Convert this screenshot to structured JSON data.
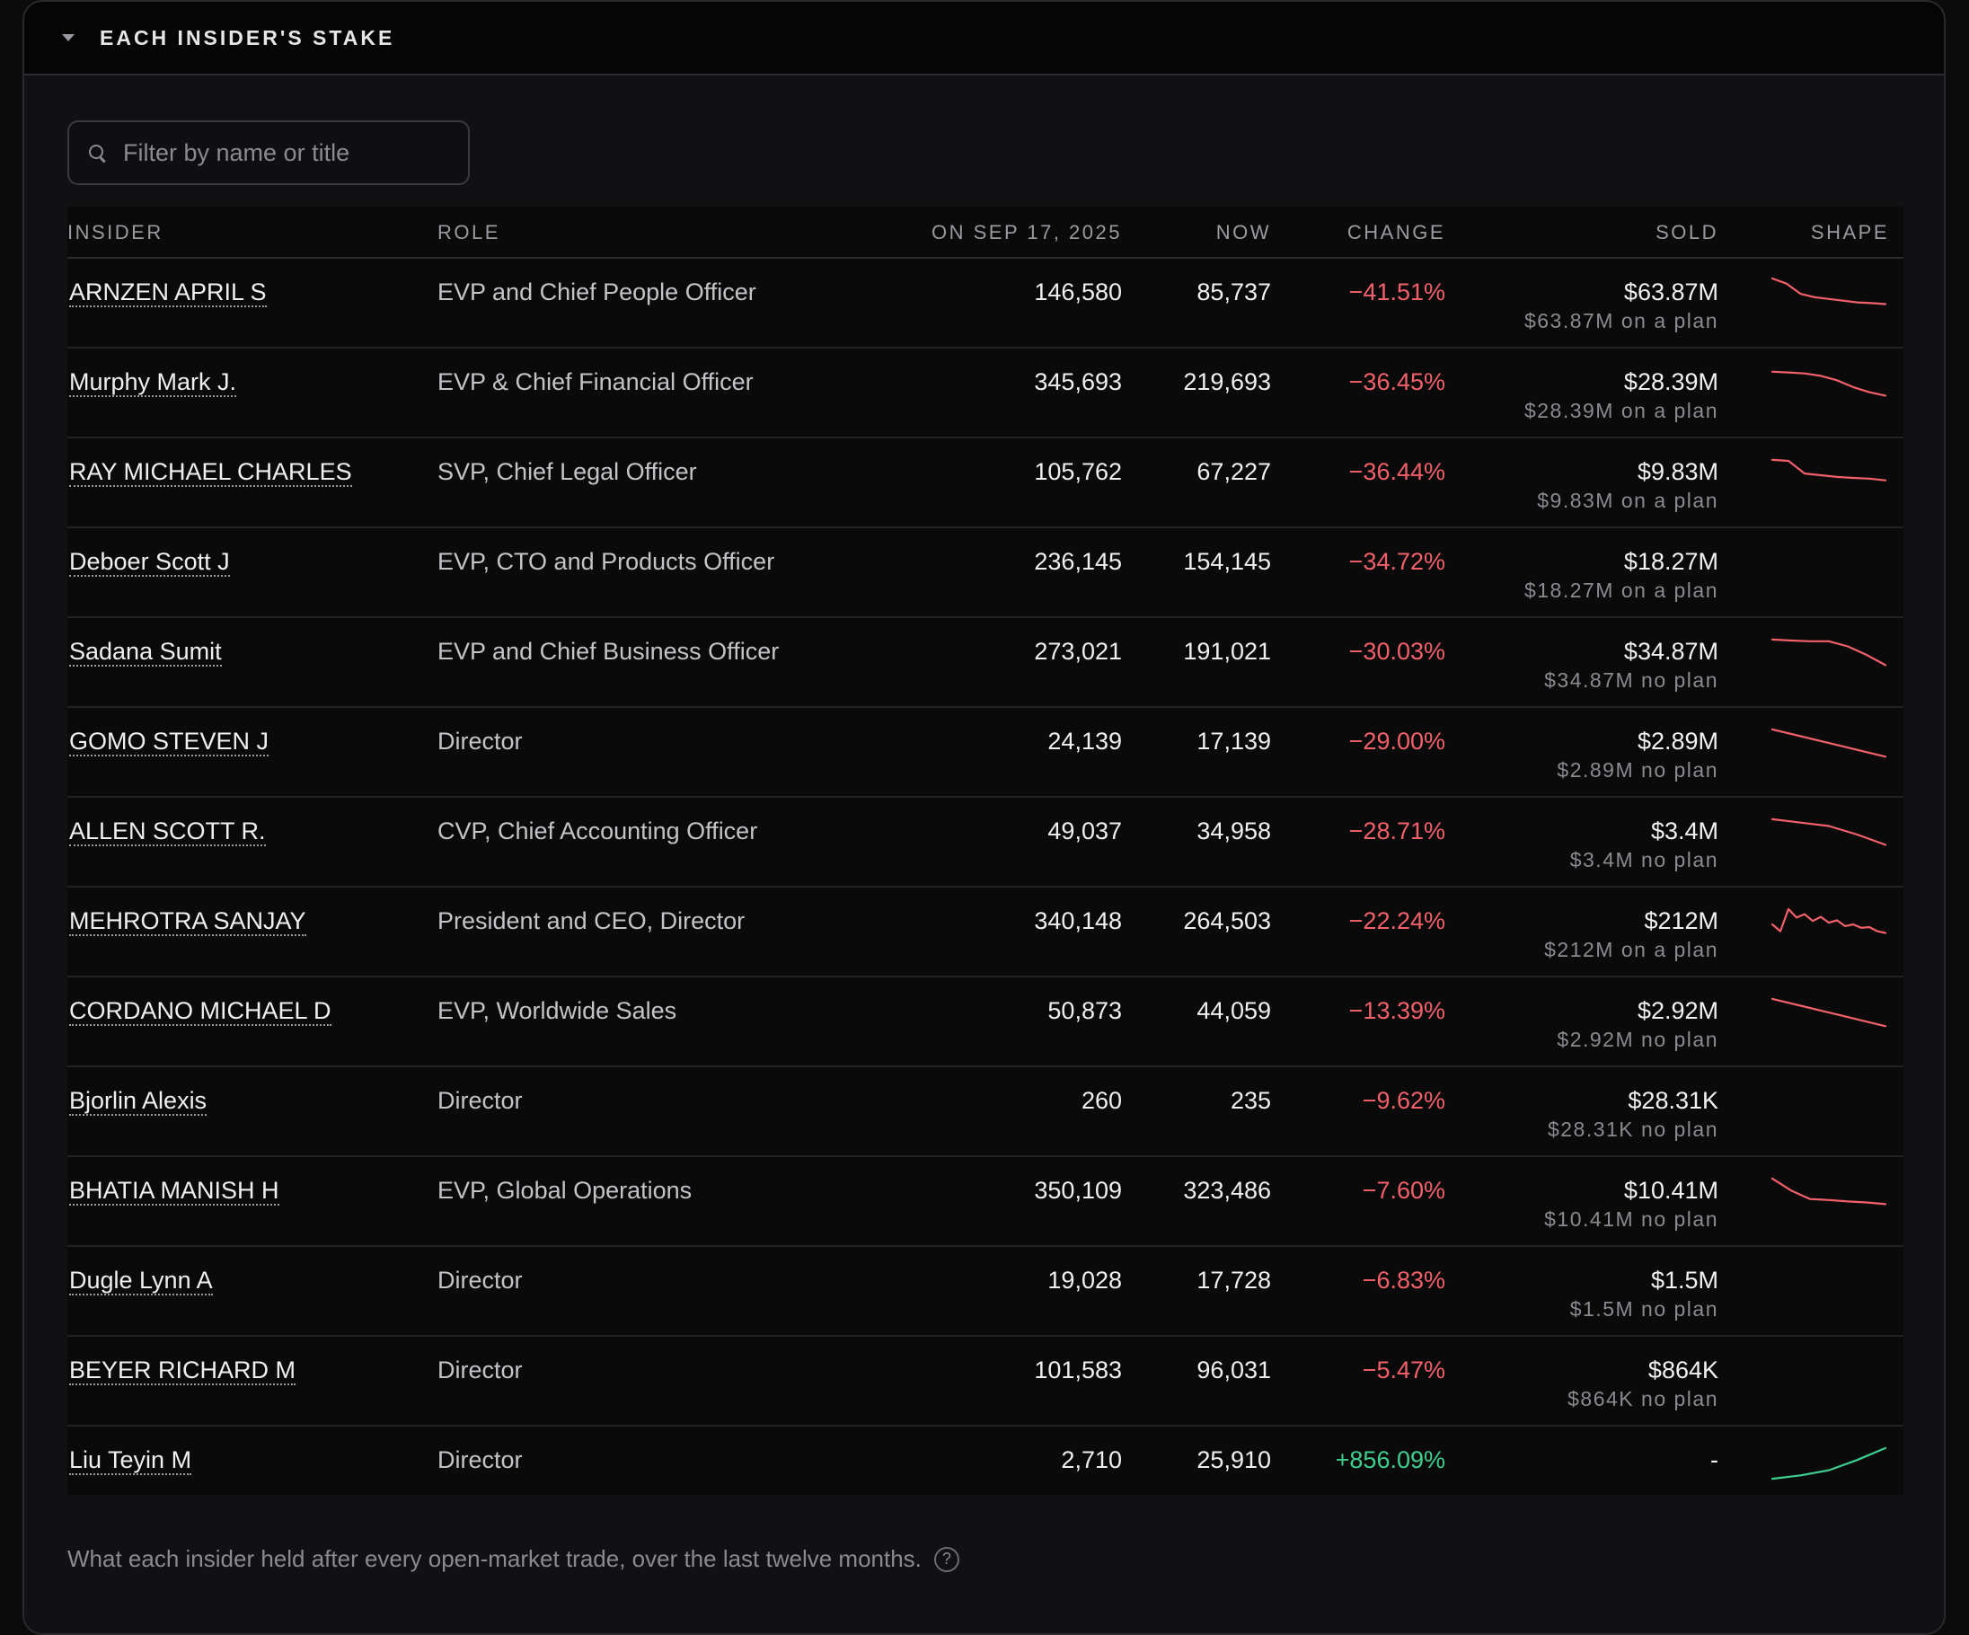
{
  "panel": {
    "title": "EACH INSIDER'S STAKE"
  },
  "filter": {
    "placeholder": "Filter by name or title",
    "value": ""
  },
  "columns": {
    "insider": "INSIDER",
    "role": "ROLE",
    "on_date": "ON SEP 17, 2025",
    "now": "NOW",
    "change": "CHANGE",
    "sold": "SOLD",
    "shape": "SHAPE"
  },
  "rows": [
    {
      "name": "ARNZEN APRIL S",
      "role": "EVP and Chief People Officer",
      "on_date": "146,580",
      "now": "85,737",
      "change": "−41.51%",
      "trend": "negative",
      "sold": "$63.87M",
      "sold_note": "$63.87M on a plan",
      "spark": [
        1.0,
        0.85,
        0.55,
        0.45,
        0.4,
        0.35,
        0.3,
        0.28,
        0.25
      ],
      "spark_color": "#f2616a"
    },
    {
      "name": "Murphy Mark J.",
      "role": "EVP & Chief Financial Officer",
      "on_date": "345,693",
      "now": "219,693",
      "change": "−36.45%",
      "trend": "negative",
      "sold": "$28.39M",
      "sold_note": "$28.39M on a plan",
      "spark": [
        0.9,
        0.88,
        0.85,
        0.78,
        0.65,
        0.45,
        0.3,
        0.2
      ],
      "spark_color": "#f2616a"
    },
    {
      "name": "RAY MICHAEL CHARLES",
      "role": "SVP, Chief Legal Officer",
      "on_date": "105,762",
      "now": "67,227",
      "change": "−36.44%",
      "trend": "negative",
      "sold": "$9.83M",
      "sold_note": "$9.83M on a plan",
      "spark": [
        0.95,
        0.92,
        0.55,
        0.5,
        0.45,
        0.42,
        0.4,
        0.35
      ],
      "spark_color": "#f2616a"
    },
    {
      "name": "Deboer Scott J",
      "role": "EVP, CTO and Products Officer",
      "on_date": "236,145",
      "now": "154,145",
      "change": "−34.72%",
      "trend": "negative",
      "sold": "$18.27M",
      "sold_note": "$18.27M on a plan",
      "spark": [],
      "spark_color": "#f2616a"
    },
    {
      "name": "Sadana Sumit",
      "role": "EVP and Chief Business Officer",
      "on_date": "273,021",
      "now": "191,021",
      "change": "−30.03%",
      "trend": "negative",
      "sold": "$34.87M",
      "sold_note": "$34.87M no plan",
      "spark": [
        0.95,
        0.92,
        0.9,
        0.9,
        0.75,
        0.5,
        0.2
      ],
      "spark_color": "#f2616a"
    },
    {
      "name": "GOMO STEVEN J",
      "role": "Director",
      "on_date": "24,139",
      "now": "17,139",
      "change": "−29.00%",
      "trend": "negative",
      "sold": "$2.89M",
      "sold_note": "$2.89M no plan",
      "spark": [
        0.95,
        0.75,
        0.55,
        0.35,
        0.15
      ],
      "spark_color": "#f2616a"
    },
    {
      "name": "ALLEN SCOTT R.",
      "role": "CVP, Chief Accounting Officer",
      "on_date": "49,037",
      "now": "34,958",
      "change": "−28.71%",
      "trend": "negative",
      "sold": "$3.4M",
      "sold_note": "$3.4M no plan",
      "spark": [
        0.95,
        0.85,
        0.75,
        0.5,
        0.2
      ],
      "spark_color": "#f2616a"
    },
    {
      "name": "MEHROTRA SANJAY",
      "role": "President and CEO, Director",
      "on_date": "340,148",
      "now": "264,503",
      "change": "−22.24%",
      "trend": "negative",
      "sold": "$212M",
      "sold_note": "$212M on a plan",
      "spark": [
        0.5,
        0.3,
        0.95,
        0.7,
        0.8,
        0.6,
        0.72,
        0.55,
        0.62,
        0.45,
        0.5,
        0.4,
        0.42,
        0.3,
        0.25
      ],
      "spark_color": "#f2616a"
    },
    {
      "name": "CORDANO MICHAEL D",
      "role": "EVP, Worldwide Sales",
      "on_date": "50,873",
      "now": "44,059",
      "change": "−13.39%",
      "trend": "negative",
      "sold": "$2.92M",
      "sold_note": "$2.92M no plan",
      "spark": [
        0.95,
        0.75,
        0.55,
        0.35,
        0.15
      ],
      "spark_color": "#f2616a"
    },
    {
      "name": "Bjorlin Alexis",
      "role": "Director",
      "on_date": "260",
      "now": "235",
      "change": "−9.62%",
      "trend": "negative",
      "sold": "$28.31K",
      "sold_note": "$28.31K no plan",
      "spark": [],
      "spark_color": "#f2616a"
    },
    {
      "name": "BHATIA MANISH H",
      "role": "EVP, Global Operations",
      "on_date": "350,109",
      "now": "323,486",
      "change": "−7.60%",
      "trend": "negative",
      "sold": "$10.41M",
      "sold_note": "$10.41M no plan",
      "spark": [
        0.95,
        0.6,
        0.35,
        0.32,
        0.28,
        0.25,
        0.2
      ],
      "spark_color": "#f2616a"
    },
    {
      "name": "Dugle Lynn A",
      "role": "Director",
      "on_date": "19,028",
      "now": "17,728",
      "change": "−6.83%",
      "trend": "negative",
      "sold": "$1.5M",
      "sold_note": "$1.5M no plan",
      "spark": [],
      "spark_color": "#f2616a"
    },
    {
      "name": "BEYER RICHARD M",
      "role": "Director",
      "on_date": "101,583",
      "now": "96,031",
      "change": "−5.47%",
      "trend": "negative",
      "sold": "$864K",
      "sold_note": "$864K no plan",
      "spark": [],
      "spark_color": "#f2616a"
    },
    {
      "name": "Liu Teyin M",
      "role": "Director",
      "on_date": "2,710",
      "now": "25,910",
      "change": "+856.09%",
      "trend": "positive",
      "sold": "-",
      "sold_note": "",
      "spark": [
        0.05,
        0.15,
        0.3,
        0.6,
        0.95
      ],
      "spark_color": "#3ecf8e"
    }
  ],
  "footer": {
    "note": "What each insider held after every open-market trade, over the last twelve months.",
    "help_label": "?"
  }
}
